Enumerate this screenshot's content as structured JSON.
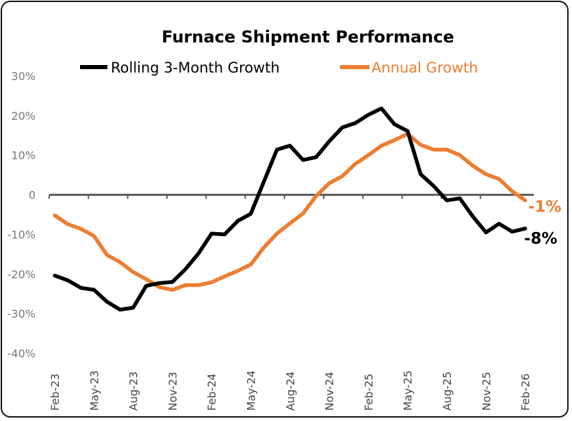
{
  "chart_data": {
    "type": "line",
    "title": "Furnace Shipment Performance",
    "xlabel": "",
    "ylabel": "",
    "ylim": [
      -40,
      30
    ],
    "y_ticks": [
      "30%",
      "20%",
      "10%",
      "0",
      "-10%",
      "-20%",
      "-30%",
      "-40%"
    ],
    "y_tick_values": [
      30,
      20,
      10,
      0,
      -10,
      -20,
      -30,
      -40
    ],
    "x_tick_labels": [
      "Feb-23",
      "May-23",
      "Aug-23",
      "Nov-23",
      "Feb-24",
      "May-24",
      "Aug-24",
      "Nov-24",
      "Feb-25",
      "May-25",
      "Aug-25",
      "Nov-25",
      "Feb-26"
    ],
    "x_tick_indices": [
      0,
      3,
      6,
      9,
      12,
      15,
      18,
      21,
      24,
      27,
      30,
      33,
      36
    ],
    "grid": false,
    "legend": "top",
    "series": [
      {
        "name": "Rolling 3-Month Growth",
        "color": "#000000",
        "end_label": "-8%",
        "values": [
          -20.4,
          -21.6,
          -23.5,
          -24,
          -27,
          -29,
          -28.5,
          -23,
          -22.3,
          -22,
          -18.8,
          -14.8,
          -9.8,
          -10,
          -6.6,
          -4.8,
          3.3,
          11.4,
          12.4,
          8.8,
          9.5,
          13.5,
          17,
          18.1,
          20.2,
          21.8,
          17.8,
          16.1,
          5.2,
          2.2,
          -1.4,
          -0.9,
          -5.5,
          -9.5,
          -7.3,
          -9.3,
          -8.5
        ]
      },
      {
        "name": "Annual Growth",
        "color": "#ED7D31",
        "end_label": "-1%",
        "values": [
          -5.2,
          -7.4,
          -8.6,
          -10.4,
          -15.2,
          -17,
          -19.5,
          -21.3,
          -23.3,
          -24,
          -22.8,
          -22.8,
          -22.1,
          -20.6,
          -19.2,
          -17.6,
          -13.3,
          -9.8,
          -7.2,
          -4.7,
          -0.3,
          2.9,
          4.7,
          7.8,
          10,
          12.4,
          13.8,
          15.4,
          12.6,
          11.4,
          11.4,
          10,
          7.3,
          5.2,
          4,
          0.9,
          -1.4
        ]
      }
    ]
  }
}
